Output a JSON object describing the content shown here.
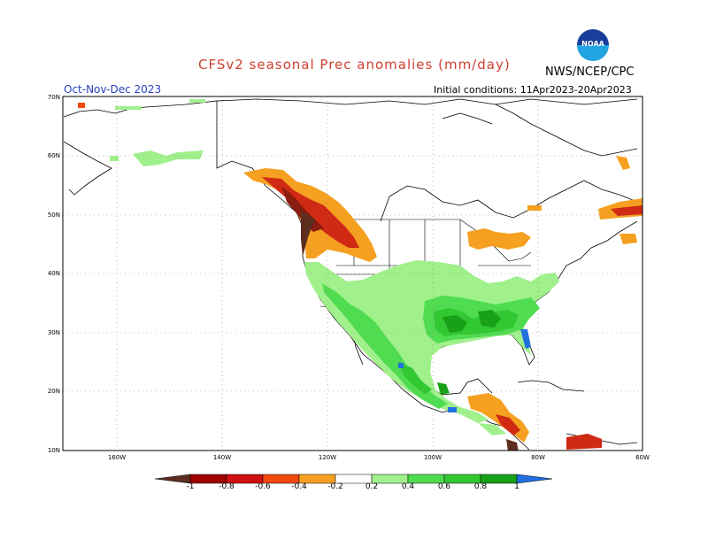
{
  "header": {
    "title": "CFSv2 seasonal Prec anomalies (mm/day)",
    "agency": "NWS/NCEP/CPC",
    "season": "Oct-Nov-Dec 2023",
    "initial_conditions": "Initial conditions: 11Apr2023-20Apr2023",
    "logo_text": "NOAA"
  },
  "axes": {
    "lat_labels": [
      "70N",
      "60N",
      "50N",
      "40N",
      "30N",
      "20N",
      "10N"
    ],
    "lon_labels": [
      "160W",
      "140W",
      "120W",
      "100W",
      "80W",
      "60W"
    ]
  },
  "colorbar": {
    "labels": [
      "-1",
      "-0.8",
      "-0.6",
      "-0.4",
      "-0.2",
      "0.2",
      "0.4",
      "0.6",
      "0.8",
      "1"
    ],
    "colors": [
      "#5c2e20",
      "#a00000",
      "#d01010",
      "#f04a10",
      "#f5a020",
      "#ffffff",
      "#a0f08c",
      "#50dc50",
      "#32c832",
      "#18a018",
      "#2070e0"
    ]
  },
  "map": {
    "region": "North America",
    "lat_range": [
      10,
      70
    ],
    "lon_range": [
      -170,
      -60
    ],
    "colors": {
      "dry_strong": "#8a1c10",
      "dry_mid": "#d02a14",
      "dry_light": "#f5a020",
      "wet_light": "#a0f08c",
      "wet_mid": "#50dc50",
      "wet_strong": "#18a018",
      "wet_max": "#2070e0",
      "dry_max": "#5c2e20"
    }
  }
}
